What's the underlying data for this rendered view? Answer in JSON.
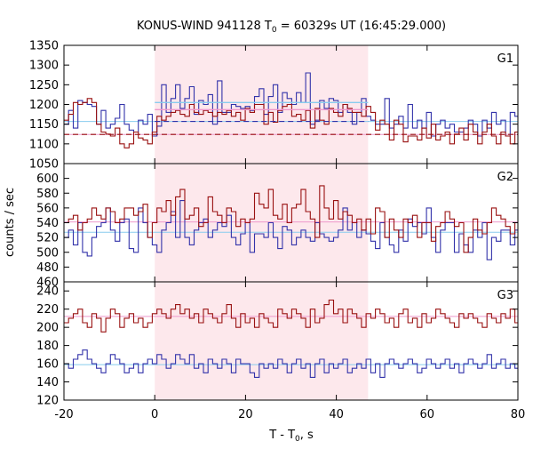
{
  "chart_data": {
    "type": "line",
    "title_main": "KONUS-WIND 941128 T",
    "title_sub": "0",
    "title_rest": " = 60329s UT (16:45:29.000)",
    "xlabel_main": "T - T",
    "xlabel_sub": "0",
    "xlabel_rest": ", s",
    "ylabel": "counts / sec",
    "xlim": [
      -20,
      80
    ],
    "xticks": [
      -20,
      0,
      20,
      40,
      60,
      80
    ],
    "highlight_interval": [
      0,
      47
    ],
    "colors": {
      "blue": "#3333aa",
      "red": "#991111",
      "cyan": "#88ccee",
      "pink": "#ee99cc",
      "highlight": "#fde8ec"
    },
    "panels": [
      {
        "label": "G1",
        "ylim": [
          1050,
          1350
        ],
        "yticks": [
          1050,
          1100,
          1150,
          1200,
          1250,
          1300,
          1350
        ],
        "blue_bg": 1157,
        "red_bg": 1124,
        "blue_fit": 1205,
        "red_fit": 1187,
        "bin_width": 1.024,
        "blue": [
          1150,
          1185,
          1140,
          1210,
          1205,
          1200,
          1195,
          1150,
          1185,
          1140,
          1150,
          1165,
          1200,
          1150,
          1135,
          1130,
          1160,
          1150,
          1175,
          1120,
          1145,
          1250,
          1180,
          1215,
          1250,
          1190,
          1215,
          1245,
          1175,
          1210,
          1200,
          1225,
          1150,
          1260,
          1180,
          1180,
          1200,
          1195,
          1190,
          1195,
          1185,
          1220,
          1240,
          1175,
          1220,
          1250,
          1180,
          1230,
          1215,
          1200,
          1230,
          1205,
          1280,
          1150,
          1160,
          1210,
          1190,
          1215,
          1210,
          1180,
          1200,
          1180,
          1150,
          1180,
          1215,
          1170,
          1160,
          1150,
          1150,
          1215,
          1140,
          1150,
          1170,
          1140,
          1200,
          1140,
          1160,
          1140,
          1180,
          1120,
          1150,
          1160,
          1140,
          1150,
          1130,
          1130,
          1140,
          1160,
          1150,
          1120,
          1160,
          1140,
          1180,
          1150,
          1160,
          1120,
          1180,
          1170
        ],
        "red": [
          1160,
          1175,
          1205,
          1200,
          1205,
          1215,
          1205,
          1150,
          1130,
          1125,
          1120,
          1140,
          1100,
          1090,
          1100,
          1130,
          1115,
          1110,
          1100,
          1130,
          1170,
          1160,
          1170,
          1180,
          1185,
          1175,
          1170,
          1200,
          1180,
          1175,
          1185,
          1180,
          1170,
          1180,
          1175,
          1185,
          1170,
          1180,
          1160,
          1190,
          1180,
          1200,
          1200,
          1150,
          1180,
          1155,
          1185,
          1195,
          1200,
          1170,
          1175,
          1160,
          1185,
          1140,
          1190,
          1160,
          1150,
          1190,
          1180,
          1170,
          1200,
          1190,
          1180,
          1180,
          1170,
          1195,
          1180,
          1135,
          1160,
          1150,
          1110,
          1160,
          1150,
          1105,
          1120,
          1120,
          1110,
          1140,
          1115,
          1150,
          1110,
          1120,
          1130,
          1100,
          1125,
          1140,
          1110,
          1150,
          1130,
          1100,
          1130,
          1150,
          1120,
          1100,
          1130,
          1120,
          1100,
          1130
        ]
      },
      {
        "label": "G2",
        "ylim": [
          460,
          620
        ],
        "yticks": [
          460,
          480,
          500,
          520,
          540,
          560,
          580,
          600
        ],
        "blue_bg": 527,
        "red_bg": 541,
        "blue_fit": 528,
        "red_fit": 542,
        "bin_width": 1.024,
        "blue": [
          520,
          530,
          510,
          540,
          500,
          495,
          520,
          535,
          540,
          560,
          530,
          515,
          540,
          545,
          505,
          500,
          560,
          540,
          520,
          510,
          500,
          530,
          540,
          555,
          520,
          570,
          520,
          510,
          530,
          540,
          545,
          520,
          530,
          540,
          535,
          550,
          520,
          510,
          525,
          540,
          500,
          525,
          525,
          520,
          540,
          520,
          505,
          535,
          530,
          510,
          520,
          530,
          520,
          515,
          540,
          525,
          520,
          515,
          520,
          530,
          560,
          530,
          540,
          520,
          530,
          525,
          515,
          505,
          540,
          520,
          510,
          500,
          530,
          515,
          545,
          535,
          540,
          525,
          560,
          520,
          500,
          530,
          540,
          540,
          500,
          525,
          510,
          500,
          530,
          520,
          540,
          490,
          520,
          515,
          530,
          530,
          510,
          530
        ],
        "red": [
          540,
          545,
          550,
          530,
          540,
          545,
          560,
          550,
          545,
          560,
          555,
          540,
          545,
          560,
          560,
          550,
          555,
          565,
          520,
          540,
          560,
          555,
          570,
          550,
          575,
          585,
          545,
          550,
          560,
          535,
          540,
          575,
          555,
          550,
          540,
          560,
          555,
          535,
          545,
          540,
          545,
          580,
          565,
          560,
          585,
          550,
          545,
          565,
          540,
          560,
          565,
          585,
          555,
          545,
          520,
          590,
          560,
          545,
          570,
          545,
          555,
          550,
          540,
          545,
          530,
          545,
          525,
          560,
          555,
          520,
          545,
          530,
          520,
          545,
          540,
          550,
          520,
          540,
          540,
          515,
          535,
          540,
          555,
          545,
          535,
          540,
          500,
          520,
          545,
          530,
          525,
          540,
          560,
          550,
          545,
          535,
          525,
          540
        ]
      },
      {
        "label": "G3",
        "ylim": [
          120,
          250
        ],
        "yticks": [
          120,
          140,
          160,
          180,
          200,
          220,
          240
        ],
        "blue_bg": 159,
        "red_bg": 212,
        "blue_fit": 160,
        "red_fit": 213,
        "bin_width": 1.024,
        "blue": [
          160,
          155,
          165,
          170,
          175,
          165,
          160,
          155,
          150,
          160,
          170,
          165,
          160,
          150,
          155,
          160,
          150,
          160,
          165,
          160,
          170,
          165,
          155,
          160,
          170,
          165,
          160,
          170,
          155,
          160,
          150,
          165,
          160,
          155,
          165,
          160,
          150,
          165,
          160,
          160,
          150,
          145,
          160,
          155,
          160,
          155,
          165,
          160,
          150,
          160,
          165,
          155,
          160,
          145,
          160,
          165,
          150,
          160,
          155,
          160,
          165,
          150,
          155,
          160,
          155,
          165,
          150,
          160,
          145,
          160,
          165,
          160,
          155,
          160,
          165,
          160,
          150,
          155,
          165,
          160,
          155,
          160,
          165,
          155,
          160,
          150,
          160,
          165,
          160,
          155,
          160,
          170,
          155,
          160,
          165,
          155,
          160,
          155
        ],
        "red": [
          205,
          210,
          215,
          220,
          205,
          200,
          215,
          210,
          195,
          210,
          220,
          215,
          200,
          210,
          215,
          205,
          210,
          200,
          205,
          215,
          220,
          215,
          210,
          220,
          225,
          215,
          220,
          210,
          215,
          205,
          220,
          215,
          210,
          205,
          215,
          225,
          210,
          200,
          215,
          205,
          210,
          200,
          215,
          210,
          205,
          200,
          220,
          215,
          210,
          220,
          215,
          210,
          200,
          220,
          205,
          210,
          225,
          230,
          215,
          220,
          205,
          220,
          215,
          210,
          200,
          215,
          210,
          220,
          215,
          205,
          210,
          200,
          215,
          220,
          205,
          210,
          200,
          215,
          205,
          210,
          220,
          215,
          210,
          205,
          200,
          215,
          210,
          215,
          210,
          205,
          200,
          215,
          210,
          205,
          215,
          210,
          220,
          205
        ]
      }
    ]
  }
}
